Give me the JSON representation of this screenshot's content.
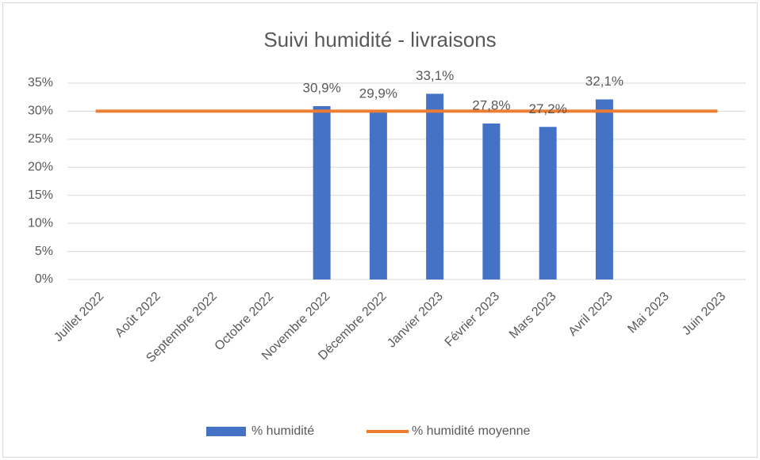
{
  "chart_data": {
    "type": "bar",
    "title": "Suivi humidité - livraisons",
    "categories": [
      "Juillet 2022",
      "Août 2022",
      "Septembre 2022",
      "Octobre 2022",
      "Novembre 2022",
      "Décembre 2022",
      "Janvier 2023",
      "Février 2023",
      "Mars 2023",
      "Avril 2023",
      "Mai 2023",
      "Juin 2023"
    ],
    "series": [
      {
        "name": "% humidité",
        "type": "bar",
        "color": "#4472c4",
        "values": [
          null,
          null,
          null,
          null,
          30.9,
          29.9,
          33.1,
          27.8,
          27.2,
          32.1,
          null,
          null
        ],
        "value_labels": [
          null,
          null,
          null,
          null,
          "30,9%",
          "29,9%",
          "33,1%",
          "27,8%",
          "27,2%",
          "32,1%",
          null,
          null
        ]
      },
      {
        "name": "% humidité moyenne",
        "type": "line",
        "color": "#ed7d31",
        "values": [
          30,
          30,
          30,
          30,
          30,
          30,
          30,
          30,
          30,
          30,
          30,
          30
        ]
      }
    ],
    "ylim": [
      0,
      35
    ],
    "yticks": [
      {
        "value": 0,
        "label": "0%"
      },
      {
        "value": 5,
        "label": "5%"
      },
      {
        "value": 10,
        "label": "10%"
      },
      {
        "value": 15,
        "label": "15%"
      },
      {
        "value": 20,
        "label": "20%"
      },
      {
        "value": 25,
        "label": "25%"
      },
      {
        "value": 30,
        "label": "30%"
      },
      {
        "value": 35,
        "label": "35%"
      }
    ],
    "grid": true,
    "legend": "bottom"
  }
}
